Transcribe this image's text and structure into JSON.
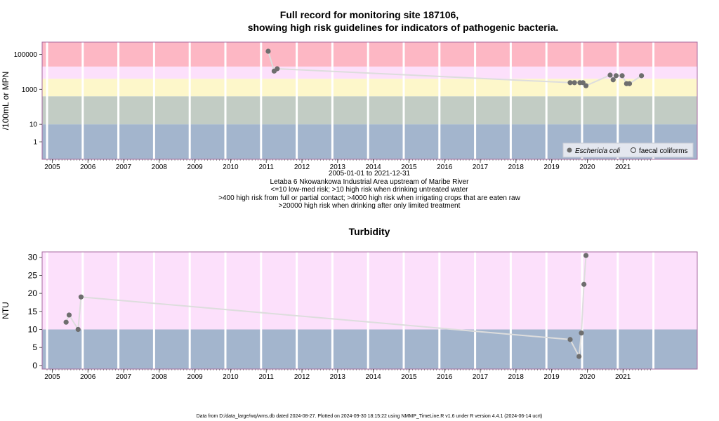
{
  "title_line1": "Full record for monitoring site 187106,",
  "title_line2": "showing high risk guidelines for indicators of pathogenic bacteria.",
  "info_lines": [
    "2005-01-01 to 2021-12-31",
    "Letaba 6 Nkowankowa Industrial Area upstream of Maribe River",
    "<=10 low-med risk; >10 high risk when drinking untreated water",
    ">400 high risk from full or partial contact; >4000 high risk when irrigating crops that are eaten raw",
    ">20000 high risk when drinking after only limited treatment"
  ],
  "footer": "Data from D:/data_large/wq/wms.db dated 2024-08-27. Plotted on 2024-09-30 18:15:22 using NMMP_TimeLine.R v1.6 under R version 4.4.1 (2024-06-14 ucrt)",
  "colors": {
    "band_low": "#a3b5cd",
    "band_mid": "#c2ccc4",
    "band_yellow": "#fdf7ca",
    "band_pink": "#fce0fb",
    "band_red": "#fdb7c4",
    "point": "#6e6e6e",
    "line": "#dddddd",
    "frame": "#a76aa0"
  },
  "chart_data": [
    {
      "type": "scatter",
      "title": "",
      "ylabel": "/100mL or MPN",
      "xlabel": "",
      "yscale": "log",
      "ylim": [
        0.1,
        500000
      ],
      "x_ticks": [
        "2005",
        "2006",
        "2007",
        "2008",
        "2009",
        "2010",
        "2011",
        "2012",
        "2013",
        "2014",
        "2015",
        "2016",
        "2017",
        "2018",
        "2019",
        "2020",
        "2021"
      ],
      "y_ticks": [
        "1",
        "10",
        "1000",
        "100000"
      ],
      "bands": [
        {
          "from": 0.1,
          "to": 10,
          "color": "band_low"
        },
        {
          "from": 10,
          "to": 400,
          "color": "band_mid"
        },
        {
          "from": 400,
          "to": 4000,
          "color": "band_yellow"
        },
        {
          "from": 4000,
          "to": 20000,
          "color": "band_pink"
        },
        {
          "from": 20000,
          "to": 500000,
          "color": "band_red"
        }
      ],
      "legend": {
        "position": "bottom-right",
        "entries": [
          "Eschericia coli",
          "faecal coliforms"
        ]
      },
      "series": [
        {
          "name": "Eschericia coli",
          "points": [
            {
              "x": "2011-03-15",
              "y": 150000
            },
            {
              "x": "2011-05-15",
              "y": 11000
            },
            {
              "x": "2011-06-15",
              "y": 15000
            },
            {
              "x": "2019-09-01",
              "y": 2400
            },
            {
              "x": "2019-10-15",
              "y": 2400
            },
            {
              "x": "2019-12-10",
              "y": 2400
            },
            {
              "x": "2020-01-10",
              "y": 2400
            },
            {
              "x": "2020-02-10",
              "y": 1600
            },
            {
              "x": "2020-10-15",
              "y": 6500
            },
            {
              "x": "2020-11-15",
              "y": 3500
            },
            {
              "x": "2020-12-15",
              "y": 6000
            },
            {
              "x": "2021-02-15",
              "y": 6000
            },
            {
              "x": "2021-04-01",
              "y": 2100
            },
            {
              "x": "2021-05-01",
              "y": 2100
            },
            {
              "x": "2021-09-01",
              "y": 6000
            }
          ]
        }
      ]
    },
    {
      "type": "scatter",
      "title": "Turbidity",
      "ylabel": "NTU",
      "xlabel": "",
      "ylim": [
        -1,
        31.5
      ],
      "x_ticks": [
        "2005",
        "2006",
        "2007",
        "2008",
        "2009",
        "2010",
        "2011",
        "2012",
        "2013",
        "2014",
        "2015",
        "2016",
        "2017",
        "2018",
        "2019",
        "2020",
        "2021"
      ],
      "y_ticks": [
        "0",
        "5",
        "10",
        "15",
        "20",
        "25",
        "30"
      ],
      "bands": [
        {
          "from": -1,
          "to": 10,
          "color": "band_low"
        },
        {
          "from": 10,
          "to": 31.5,
          "color": "band_pink"
        }
      ],
      "series": [
        {
          "points": [
            {
              "x": "2005-07-15",
              "y": 12
            },
            {
              "x": "2005-08-15",
              "y": 14
            },
            {
              "x": "2005-11-15",
              "y": 10
            },
            {
              "x": "2005-12-15",
              "y": 19
            },
            {
              "x": "2019-09-01",
              "y": 7.2
            },
            {
              "x": "2019-12-01",
              "y": 2.5
            },
            {
              "x": "2019-12-25",
              "y": 9
            },
            {
              "x": "2020-01-20",
              "y": 22.5
            },
            {
              "x": "2020-02-10",
              "y": 30.5
            }
          ]
        }
      ]
    }
  ]
}
